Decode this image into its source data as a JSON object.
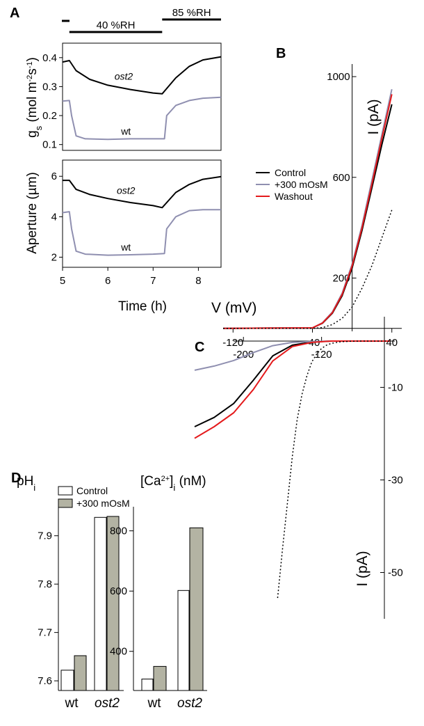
{
  "chart_data": [
    {
      "panel": "A",
      "type": "line",
      "xlabel": "Time (h)",
      "xlim": [
        5,
        8.5
      ],
      "xticks": [
        5,
        6,
        7,
        8
      ],
      "conditions": [
        {
          "label": "40 %RH",
          "x_range": [
            5.15,
            7.2
          ]
        },
        {
          "label": "85 %RH",
          "x_range": [
            7.2,
            8.5
          ]
        }
      ],
      "subplots": [
        {
          "ylabel": "gs (mol m-2 s-1)",
          "ylim": [
            0.08,
            0.45
          ],
          "yticks": [
            0.1,
            0.2,
            0.3,
            0.4
          ],
          "series": [
            {
              "name": "ost2",
              "color": "#000000",
              "x": [
                5.0,
                5.15,
                5.3,
                5.6,
                6.0,
                6.5,
                7.0,
                7.2,
                7.5,
                7.8,
                8.1,
                8.5
              ],
              "y": [
                0.385,
                0.39,
                0.355,
                0.325,
                0.305,
                0.29,
                0.278,
                0.275,
                0.33,
                0.37,
                0.392,
                0.403
              ]
            },
            {
              "name": "wt",
              "color": "#8f8fb0",
              "x": [
                5.0,
                5.15,
                5.2,
                5.3,
                5.5,
                6.0,
                6.5,
                7.0,
                7.25,
                7.3,
                7.5,
                7.8,
                8.1,
                8.5
              ],
              "y": [
                0.25,
                0.252,
                0.2,
                0.13,
                0.12,
                0.118,
                0.12,
                0.12,
                0.12,
                0.2,
                0.235,
                0.252,
                0.26,
                0.263
              ]
            }
          ]
        },
        {
          "ylabel": "Aperture (µm)",
          "ylim": [
            1.5,
            6.8
          ],
          "yticks": [
            2,
            4,
            6
          ],
          "series": [
            {
              "name": "ost2",
              "color": "#000000",
              "x": [
                5.0,
                5.15,
                5.3,
                5.6,
                6.0,
                6.5,
                7.0,
                7.2,
                7.5,
                7.8,
                8.1,
                8.5
              ],
              "y": [
                5.8,
                5.8,
                5.35,
                5.1,
                4.9,
                4.7,
                4.55,
                4.45,
                5.2,
                5.6,
                5.85,
                5.98
              ]
            },
            {
              "name": "wt",
              "color": "#8f8fb0",
              "x": [
                5.0,
                5.15,
                5.2,
                5.3,
                5.5,
                6.0,
                6.5,
                7.0,
                7.25,
                7.3,
                7.5,
                7.8,
                8.1,
                8.5
              ],
              "y": [
                4.2,
                4.25,
                3.4,
                2.3,
                2.15,
                2.1,
                2.12,
                2.15,
                2.18,
                3.4,
                4.0,
                4.3,
                4.35,
                4.35
              ]
            }
          ]
        }
      ]
    },
    {
      "panel": "B",
      "type": "line",
      "xlabel": "V (mV)",
      "ylabel": "I (pA)",
      "xlim": [
        -130,
        50
      ],
      "ylim": [
        -20,
        1050
      ],
      "xticks": [
        -120,
        -40,
        40
      ],
      "yticks": [
        200,
        600,
        1000
      ],
      "legend_position": "left",
      "series": [
        {
          "name": "Control",
          "color": "#000000",
          "dash": "solid",
          "x": [
            -130,
            -40,
            -30,
            -20,
            -10,
            0,
            10,
            20,
            30,
            40
          ],
          "y": [
            0,
            2,
            20,
            60,
            130,
            240,
            390,
            560,
            730,
            890
          ]
        },
        {
          "name": "+300 mOsM",
          "color": "#8f8fb0",
          "dash": "solid",
          "x": [
            -130,
            -40,
            -30,
            -20,
            -10,
            0,
            10,
            20,
            30,
            40
          ],
          "y": [
            0,
            2,
            22,
            65,
            140,
            255,
            410,
            590,
            770,
            950
          ]
        },
        {
          "name": "Washout",
          "color": "#e41a1c",
          "dash": "solid",
          "x": [
            -130,
            -40,
            -30,
            -20,
            -10,
            0,
            10,
            20,
            30,
            40
          ],
          "y": [
            0,
            2,
            21,
            62,
            135,
            248,
            400,
            575,
            755,
            930
          ]
        },
        {
          "name": "",
          "color": "#000000",
          "dash": "dotted",
          "x": [
            -130,
            -40,
            -30,
            -20,
            -10,
            0,
            10,
            20,
            30,
            40
          ],
          "y": [
            0,
            0,
            3,
            15,
            40,
            85,
            160,
            250,
            360,
            470
          ]
        }
      ]
    },
    {
      "panel": "C",
      "type": "line",
      "ylabel": "I (pA)",
      "xlim": [
        -250,
        -45
      ],
      "ylim": [
        -60,
        3
      ],
      "xticks": [
        -200,
        -120
      ],
      "yticks": [
        -10,
        -30,
        -50
      ],
      "series": [
        {
          "name": "Control",
          "color": "#000000",
          "dash": "solid",
          "x": [
            -250,
            -230,
            -210,
            -190,
            -170,
            -150,
            -130,
            -110,
            -90,
            -70,
            -50
          ],
          "y": [
            -18.5,
            -16.5,
            -13.5,
            -8.5,
            -3.2,
            -0.9,
            -0.2,
            0,
            0,
            0,
            0
          ]
        },
        {
          "name": "+300 mOsM",
          "color": "#8f8fb0",
          "dash": "solid",
          "x": [
            -250,
            -230,
            -210,
            -190,
            -170,
            -150,
            -130,
            -110,
            -90,
            -70,
            -50
          ],
          "y": [
            -6.3,
            -5.4,
            -4.2,
            -2.5,
            -1.0,
            -0.3,
            -0.1,
            0,
            0,
            0,
            0
          ]
        },
        {
          "name": "Washout",
          "color": "#e41a1c",
          "dash": "solid",
          "x": [
            -250,
            -230,
            -210,
            -190,
            -170,
            -150,
            -130,
            -110,
            -90,
            -70,
            -50
          ],
          "y": [
            -21.0,
            -18.5,
            -15.5,
            -10.5,
            -4.3,
            -1.2,
            -0.3,
            0,
            0,
            0,
            0
          ]
        },
        {
          "name": "",
          "color": "#000000",
          "dash": "dotted",
          "x": [
            -165,
            -160,
            -155,
            -150,
            -145,
            -140,
            -135,
            -130,
            -125,
            -120,
            -115,
            -110,
            -100,
            -90,
            -80,
            -70,
            -50
          ],
          "y": [
            -55.5,
            -45,
            -35,
            -25,
            -17,
            -11.5,
            -7.5,
            -4.5,
            -2.8,
            -1.6,
            -0.9,
            -0.5,
            -0.15,
            -0.05,
            0,
            0,
            0
          ]
        }
      ]
    },
    {
      "panel": "D",
      "type": "bar",
      "legend_position": "top",
      "series_names": [
        "Control",
        "+300 mOsM"
      ],
      "series_colors": [
        "#ffffff",
        "#b3b3a3"
      ],
      "groups": [
        {
          "ylabel": "pHi",
          "axis_side": "left",
          "ylim": [
            7.58,
            7.96
          ],
          "yticks": [
            7.6,
            7.7,
            7.8,
            7.9
          ],
          "categories": [
            "wt",
            "ost2"
          ],
          "values": [
            [
              7.622,
              7.652
            ],
            [
              7.938,
              7.94
            ]
          ]
        },
        {
          "ylabel": "[Ca2+]i (nM)",
          "axis_side": "left",
          "ylim": [
            270,
            880
          ],
          "yticks": [
            400,
            600,
            800
          ],
          "categories": [
            "wt",
            "ost2"
          ],
          "values": [
            [
              308,
              350
            ],
            [
              602,
              810
            ]
          ]
        }
      ]
    }
  ]
}
